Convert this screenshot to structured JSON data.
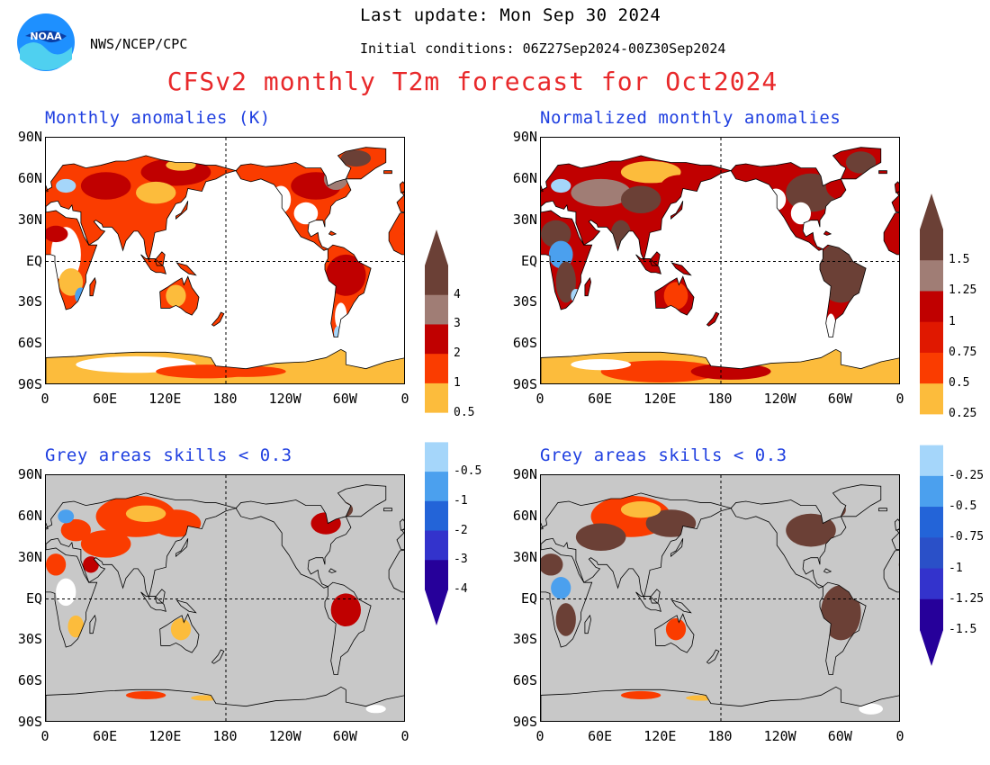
{
  "header": {
    "org": "NWS/NCEP/CPC",
    "last_update": "Last update: Mon Sep 30 2024",
    "initial_conditions": "Initial conditions: 06Z27Sep2024-00Z30Sep2024",
    "main_title": "CFSv2 monthly T2m forecast for Oct2024",
    "logo_text": "NOAA"
  },
  "panels": {
    "top_left": "Monthly anomalies (K)",
    "top_right": "Normalized monthly anomalies",
    "bottom_left": "Grey areas skills < 0.3",
    "bottom_right": "Grey areas skills < 0.3"
  },
  "axes": {
    "lat_labels": [
      "90N",
      "60N",
      "30N",
      "EQ",
      "30S",
      "60S",
      "90S"
    ],
    "lon_labels": [
      "0",
      "60E",
      "120E",
      "180",
      "120W",
      "60W",
      "0"
    ]
  },
  "colorbar_left": {
    "labels": [
      "4",
      "3",
      "2",
      "1",
      "0.5",
      "-0.5",
      "-1",
      "-2",
      "-3",
      "-4"
    ]
  },
  "colorbar_right": {
    "labels": [
      "1.5",
      "1.25",
      "1",
      "0.75",
      "0.5",
      "0.25",
      "-0.25",
      "-0.5",
      "-0.75",
      "-1",
      "-1.25",
      "-1.5"
    ]
  },
  "colors": {
    "title_red": "#e8292b",
    "panel_title_blue": "#1f3fe0",
    "skill_grey": "#c8c8c8",
    "scale_warm": [
      "#fcbc3c",
      "#fa3c00",
      "#c00000",
      "#a07d75",
      "#6b4036"
    ],
    "scale_cool": [
      "#a5d6fa",
      "#4ba0ee",
      "#2364d8",
      "#3333cc",
      "#26009a"
    ]
  }
}
